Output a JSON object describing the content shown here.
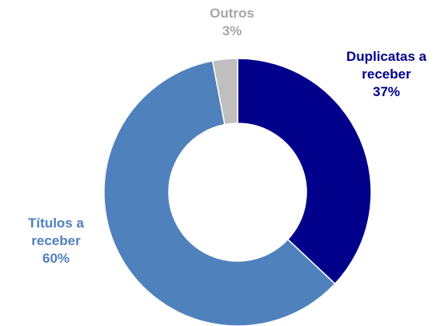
{
  "chart_data": {
    "type": "donut",
    "categories": [
      "Duplicatas a receber",
      "Títulos a receber",
      "Outros"
    ],
    "values": [
      37,
      60,
      3
    ],
    "value_labels": [
      "37%",
      "60%",
      "3%"
    ],
    "colors": [
      "#00008B",
      "#4F81BD",
      "#BFBFBF"
    ]
  }
}
